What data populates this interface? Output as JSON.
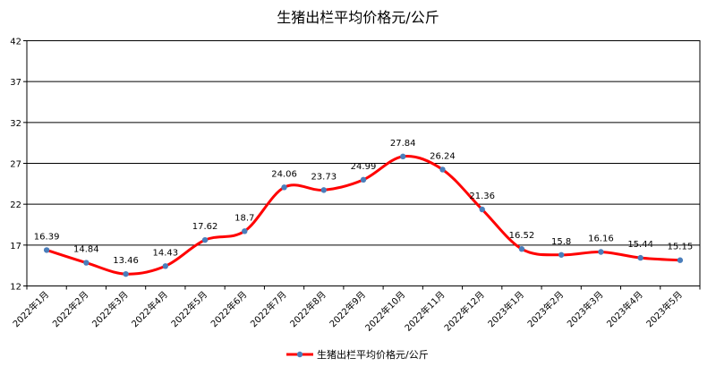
{
  "chart_data": {
    "type": "line",
    "title": "生猪出栏平均价格元/公斤",
    "categories": [
      "2022年1月",
      "2022年2月",
      "2022年3月",
      "2022年4月",
      "2022年5月",
      "2022年6月",
      "2022年7月",
      "2022年8月",
      "2022年9月",
      "2022年10月",
      "2022年11月",
      "2022年12月",
      "2023年1月",
      "2023年2月",
      "2023年3月",
      "2023年4月",
      "2023年5月"
    ],
    "series": [
      {
        "name": "生猪出栏平均价格元/公斤",
        "values": [
          16.39,
          14.84,
          13.46,
          14.43,
          17.62,
          18.7,
          24.06,
          23.73,
          24.99,
          27.84,
          26.24,
          21.36,
          16.52,
          15.8,
          16.16,
          15.44,
          15.15
        ],
        "labels": [
          "16.39",
          "14.84",
          "13.46",
          "14.43",
          "17.62",
          "18.7",
          "24.06",
          "23.73",
          "24.99",
          "27.84",
          "26.24",
          "21.36",
          "16.52",
          "15.8",
          "16.16",
          "15.44",
          "15.15"
        ],
        "color": "#ff0000",
        "marker_color": "#4a7ebb"
      }
    ],
    "yticks": [
      "12",
      "17",
      "22",
      "27",
      "32",
      "37",
      "42"
    ],
    "ylim": [
      12,
      42
    ],
    "xlabel": "",
    "ylabel": "",
    "grid": true,
    "legend": "bottom"
  }
}
